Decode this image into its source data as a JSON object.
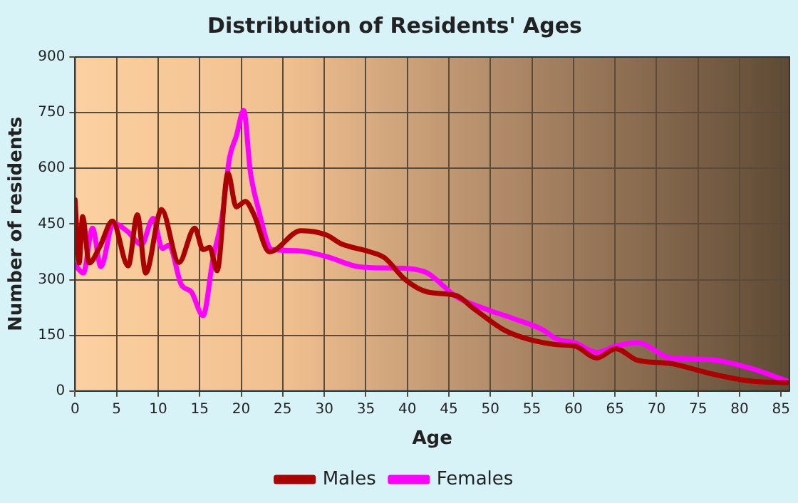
{
  "chart_data": {
    "type": "line",
    "title": "Distribution of Residents' Ages",
    "xlabel": "Age",
    "ylabel": "Number of residents",
    "xlim": [
      0,
      86
    ],
    "xticks": [
      0,
      5,
      10,
      15,
      20,
      25,
      30,
      35,
      40,
      45,
      50,
      55,
      60,
      65,
      70,
      75,
      80,
      85
    ],
    "ylim": [
      0,
      900
    ],
    "yticks": [
      0,
      150,
      300,
      450,
      600,
      750,
      900
    ],
    "grid": true,
    "legend": "bottom",
    "marker": "none",
    "line_style": "solid",
    "series": [
      {
        "name": "Males",
        "color": "#aa0000",
        "x": [
          0,
          0.5,
          0.9,
          1.7,
          3,
          4.5,
          6.4,
          7.5,
          8.5,
          10.4,
          12.5,
          14.4,
          15.4,
          16.2,
          17.1,
          18.4,
          19.4,
          20.5,
          21.5,
          23.4,
          27.2,
          30.3,
          32,
          35.5,
          37.2,
          39.8,
          42.4,
          45.9,
          48,
          51.6,
          54.5,
          58,
          60.2,
          62.8,
          65.1,
          67.7,
          71.7,
          76.3,
          80.9,
          86
        ],
        "values": [
          515,
          345,
          470,
          345,
          390,
          458,
          337,
          475,
          318,
          489,
          346,
          439,
          381,
          387,
          324,
          587,
          496,
          511,
          477,
          375,
          432,
          420,
          397,
          375,
          360,
          299,
          267,
          257,
          222,
          165,
          140,
          125,
          121,
          89,
          114,
          83,
          74,
          48,
          28,
          22
        ]
      },
      {
        "name": "Females",
        "color": "#ff00ff",
        "x": [
          0,
          1,
          2.1,
          3.1,
          4.6,
          6.3,
          8,
          9.4,
          10.5,
          11.3,
          12.8,
          14,
          15.4,
          16.6,
          17.7,
          18.6,
          19.4,
          20.3,
          21.1,
          22,
          23.7,
          26.9,
          30.3,
          34.4,
          40.1,
          42.4,
          45.9,
          49.3,
          52.8,
          56.3,
          58,
          60.2,
          62.8,
          65.1,
          67.7,
          71.7,
          76.3,
          80.9,
          86
        ],
        "values": [
          340,
          318,
          439,
          335,
          452,
          430,
          395,
          465,
          384,
          393,
          286,
          267,
          203,
          356,
          470,
          629,
          686,
          756,
          591,
          496,
          381,
          378,
          362,
          334,
          330,
          318,
          254,
          222,
          195,
          165,
          140,
          130,
          104,
          121,
          130,
          89,
          85,
          64,
          25
        ]
      }
    ]
  }
}
